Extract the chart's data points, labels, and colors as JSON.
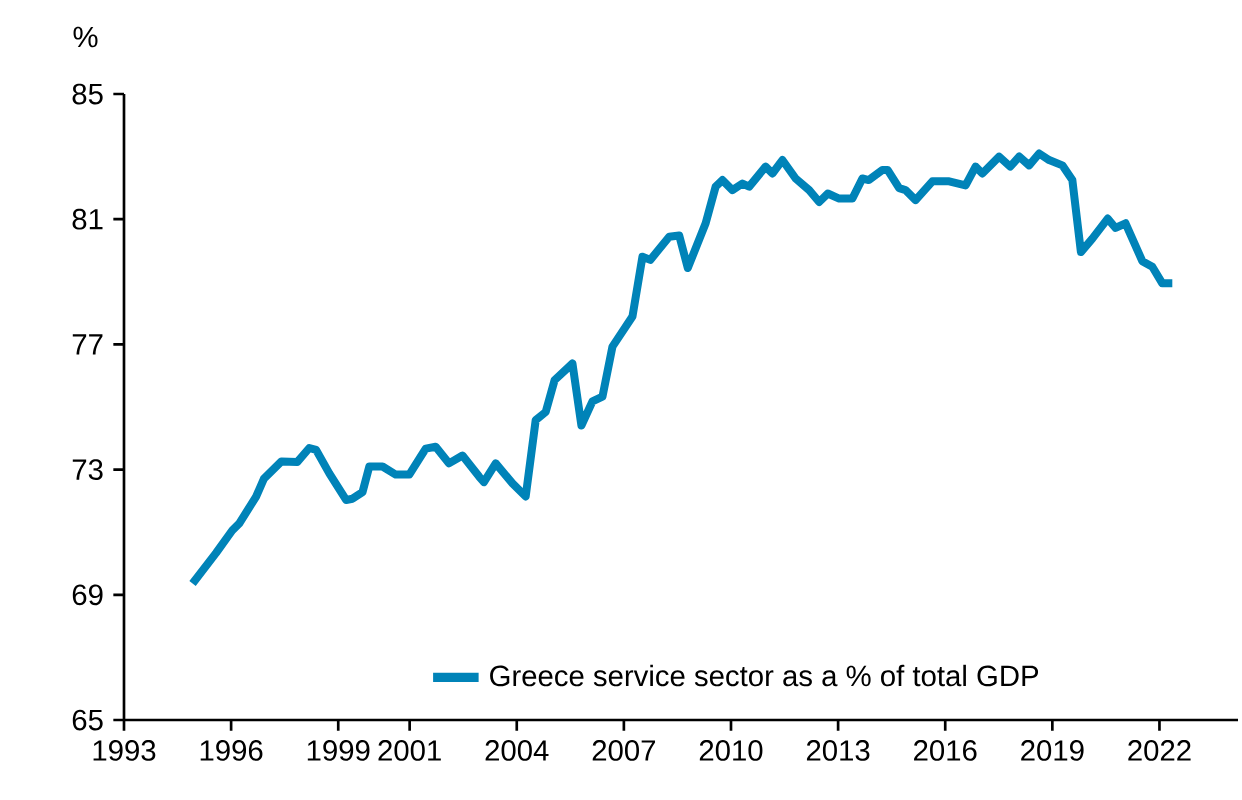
{
  "chart_data": {
    "type": "line",
    "ylabel": "%",
    "x": [
      1994.92,
      1995.58,
      1996.04,
      1996.23,
      1996.7,
      1996.92,
      1997.41,
      1997.85,
      1998.19,
      1998.38,
      1998.75,
      1999.22,
      1999.4,
      1999.68,
      1999.87,
      2000.24,
      2000.61,
      2000.99,
      2001.45,
      2001.73,
      2002.1,
      2002.48,
      2002.95,
      2003.08,
      2003.41,
      2003.88,
      2004.25,
      2004.53,
      2004.81,
      2005.06,
      2005.56,
      2005.81,
      2006.12,
      2006.4,
      2006.68,
      2007.24,
      2007.52,
      2007.74,
      2008.27,
      2008.55,
      2008.79,
      2009.29,
      2009.57,
      2009.76,
      2010.04,
      2010.32,
      2010.51,
      2010.97,
      2011.16,
      2011.44,
      2011.81,
      2012.19,
      2012.47,
      2012.71,
      2013.03,
      2013.4,
      2013.68,
      2013.86,
      2014.24,
      2014.39,
      2014.71,
      2014.89,
      2015.17,
      2015.64,
      2016.11,
      2016.57,
      2016.85,
      2017.04,
      2017.51,
      2017.82,
      2018.07,
      2018.35,
      2018.63,
      2018.91,
      2019.28,
      2019.56,
      2019.8,
      2020.12,
      2020.55,
      2020.77,
      2021.05,
      2021.52,
      2021.8,
      2022.08,
      2022.36
    ],
    "series": [
      {
        "name": "Greece service sector as a % of total GDP",
        "color": "#0083b8",
        "values": [
          69.36,
          70.34,
          71.07,
          71.28,
          72.14,
          72.71,
          73.26,
          73.24,
          73.69,
          73.63,
          72.88,
          72.03,
          72.07,
          72.28,
          73.1,
          73.1,
          72.84,
          72.84,
          73.67,
          73.73,
          73.2,
          73.45,
          72.77,
          72.6,
          73.2,
          72.56,
          72.14,
          74.58,
          74.84,
          75.86,
          76.39,
          74.41,
          75.18,
          75.33,
          76.93,
          77.89,
          79.8,
          79.7,
          80.44,
          80.48,
          79.44,
          80.87,
          82.04,
          82.25,
          81.93,
          82.14,
          82.04,
          82.68,
          82.46,
          82.89,
          82.3,
          81.93,
          81.55,
          81.82,
          81.66,
          81.66,
          82.3,
          82.25,
          82.57,
          82.57,
          81.99,
          81.93,
          81.61,
          82.21,
          82.21,
          82.08,
          82.68,
          82.46,
          83.0,
          82.68,
          83.0,
          82.72,
          83.1,
          82.89,
          82.72,
          82.25,
          79.95,
          80.38,
          81.02,
          80.72,
          80.87,
          79.66,
          79.48,
          78.95,
          78.95
        ]
      }
    ],
    "xlim": [
      1993,
      2024.2
    ],
    "xticks": [
      1993,
      1996,
      1999,
      2001,
      2004,
      2007,
      2010,
      2013,
      2016,
      2019,
      2022
    ],
    "ylim": [
      65,
      85
    ],
    "yticks": [
      65,
      69,
      73,
      77,
      81,
      85
    ],
    "grid": false,
    "legend": "bottom",
    "marker": "none",
    "line_style": "solid"
  }
}
